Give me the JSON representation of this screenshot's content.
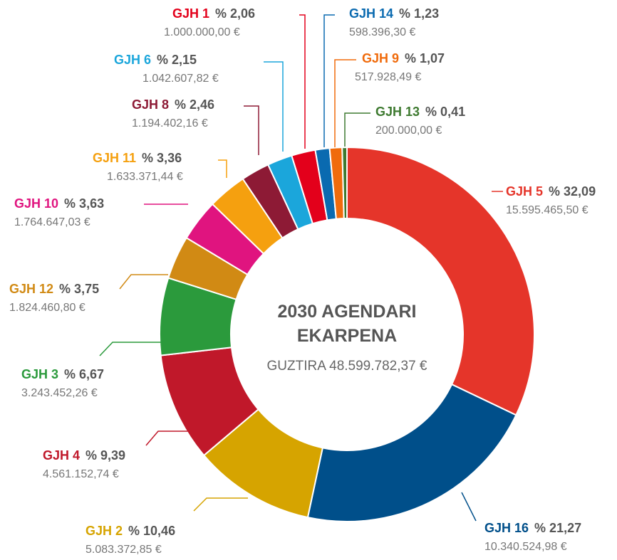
{
  "chart_data": {
    "type": "pie",
    "donut": true,
    "center_title": [
      "2030 AGENDARI",
      "EKARPENA"
    ],
    "center_total": "GUZTIRA 48.599.782,37 €",
    "categories": [
      "GJH 5",
      "GJH 16",
      "GJH 2",
      "GJH 4",
      "GJH 3",
      "GJH 12",
      "GJH 10",
      "GJH 11",
      "GJH 8",
      "GJH 6",
      "GJH 1",
      "GJH 14",
      "GJH 9",
      "GJH 13"
    ],
    "values": [
      32.09,
      21.27,
      10.46,
      9.39,
      6.67,
      3.75,
      3.63,
      3.36,
      2.46,
      2.15,
      2.06,
      1.23,
      1.07,
      0.41
    ],
    "value_labels": [
      "% 32,09",
      "% 21,27",
      "% 10,46",
      "% 9,39",
      "% 6,67",
      "% 3,75",
      "% 3,63",
      "% 3,36",
      "% 2,46",
      "% 2,15",
      "% 2,06",
      "% 1,23",
      "% 1,07",
      "% 0,41"
    ],
    "amounts": [
      15595465.5,
      10340524.98,
      5083372.85,
      4561152.74,
      3243452.26,
      1824460.8,
      1764647.03,
      1633371.44,
      1194402.16,
      1042607.82,
      1000000,
      598396.3,
      517928.49,
      200000
    ],
    "amount_labels": [
      "15.595.465,50 €",
      "10.340.524,98 €",
      "5.083.372,85 €",
      "4.561.152,74 €",
      "3.243.452,26 €",
      "1.824.460,80 €",
      "1.764.647,03 €",
      "1.633.371,44 €",
      "1.194.402,16 €",
      "1.042.607,82 €",
      "1.000.000,00 €",
      "598.396,30 €",
      "517.928,49 €",
      "200.000,00 €"
    ],
    "colors": [
      "#e5352a",
      "#004f8a",
      "#d6a400",
      "#c0182a",
      "#2b9a3c",
      "#d18a14",
      "#e0147f",
      "#f5a00f",
      "#8d1a35",
      "#1ba6db",
      "#e3001b",
      "#0a6ab0",
      "#f06b0c",
      "#3e7a30"
    ]
  }
}
